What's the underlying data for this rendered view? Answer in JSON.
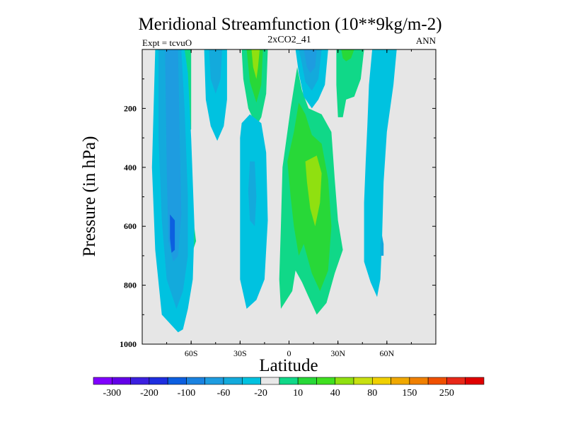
{
  "chart_data": {
    "type": "contour",
    "title": "Meridional Streamfunction (10**9kg/m-2)",
    "subtitle": "2xCO2_41",
    "left_label": "Expt = tcvuO",
    "right_label": "ANN",
    "xlabel": "Latitude",
    "ylabel": "Pressure (in hPa)",
    "xlim": [
      -90,
      90
    ],
    "ylim": [
      1000,
      0
    ],
    "x_ticks": [
      {
        "value": -60,
        "label": "60S"
      },
      {
        "value": -30,
        "label": "30S"
      },
      {
        "value": 0,
        "label": "0"
      },
      {
        "value": 30,
        "label": "30N"
      },
      {
        "value": 60,
        "label": "60N"
      }
    ],
    "y_ticks": [
      {
        "value": 200,
        "label": "200"
      },
      {
        "value": 400,
        "label": "400"
      },
      {
        "value": 600,
        "label": "600"
      },
      {
        "value": 800,
        "label": "800"
      },
      {
        "value": 1000,
        "label": "1000"
      }
    ],
    "background_color": "#e6e6e6",
    "colorbar": {
      "colors": [
        "#8000ff",
        "#6300e8",
        "#3b1fe0",
        "#1e2ee0",
        "#0c5fe0",
        "#1a82e0",
        "#1e9ce0",
        "#13aadc",
        "#00c2e0",
        "#e8e8e8",
        "#10d888",
        "#28d838",
        "#40e020",
        "#90e010",
        "#c8e010",
        "#f0d000",
        "#f0a800",
        "#f08000",
        "#f05000",
        "#e82818",
        "#e00000"
      ],
      "labels": [
        "-300",
        "-200",
        "-100",
        "-60",
        "-20",
        "10",
        "40",
        "80",
        "150",
        "250"
      ]
    },
    "regions": [
      {
        "level": 2,
        "color": "#00c2e0",
        "points": [
          [
            -82,
            0
          ],
          [
            -64,
            0
          ],
          [
            -62,
            80
          ],
          [
            -60,
            300
          ],
          [
            -58,
            600
          ],
          [
            -59,
            780
          ],
          [
            -62,
            880
          ],
          [
            -65,
            950
          ],
          [
            -68,
            960
          ],
          [
            -78,
            900
          ],
          [
            -82,
            680
          ],
          [
            -84,
            400
          ]
        ]
      },
      {
        "level": 3,
        "color": "#13aadc",
        "points": [
          [
            -80,
            0
          ],
          [
            -66,
            0
          ],
          [
            -64,
            200
          ],
          [
            -62,
            500
          ],
          [
            -62,
            700
          ],
          [
            -65,
            820
          ],
          [
            -69,
            880
          ],
          [
            -75,
            780
          ],
          [
            -78,
            580
          ],
          [
            -80,
            300
          ]
        ]
      },
      {
        "level": 4,
        "color": "#1e9ce0",
        "points": [
          [
            -76,
            0
          ],
          [
            -68,
            0
          ],
          [
            -67,
            300
          ],
          [
            -66,
            560
          ],
          [
            -68,
            700
          ],
          [
            -71,
            720
          ],
          [
            -74,
            650
          ],
          [
            -75,
            400
          ]
        ]
      },
      {
        "level": 5,
        "color": "#0c5fe0",
        "points": [
          [
            -73,
            560
          ],
          [
            -70,
            580
          ],
          [
            -70,
            680
          ],
          [
            -72,
            690
          ],
          [
            -73,
            640
          ]
        ]
      },
      {
        "level": 1,
        "color": "#10d888",
        "points": [
          [
            -66,
            0
          ],
          [
            -60,
            0
          ],
          [
            -60,
            270
          ],
          [
            -63,
            300
          ],
          [
            -65,
            200
          ]
        ]
      },
      {
        "level": 1,
        "color": "#10d888",
        "points": [
          [
            -60,
            520
          ],
          [
            -57,
            650
          ],
          [
            -60,
            700
          ],
          [
            -62,
            680
          ]
        ]
      },
      {
        "level": 2,
        "color": "#00c2e0",
        "points": [
          [
            -52,
            0
          ],
          [
            -38,
            0
          ],
          [
            -38,
            170
          ],
          [
            -40,
            260
          ],
          [
            -44,
            310
          ],
          [
            -48,
            260
          ],
          [
            -51,
            170
          ]
        ]
      },
      {
        "level": 3,
        "color": "#13aadc",
        "points": [
          [
            -49,
            0
          ],
          [
            -41,
            0
          ],
          [
            -42,
            100
          ],
          [
            -45,
            150
          ],
          [
            -48,
            100
          ]
        ]
      },
      {
        "level": 1,
        "color": "#10d888",
        "points": [
          [
            -29,
            0
          ],
          [
            -13,
            0
          ],
          [
            -14,
            150
          ],
          [
            -17,
            230
          ],
          [
            -20,
            260
          ],
          [
            -25,
            200
          ],
          [
            -28,
            100
          ]
        ]
      },
      {
        "level": 2,
        "color": "#28d838",
        "points": [
          [
            -26,
            0
          ],
          [
            -16,
            0
          ],
          [
            -17,
            120
          ],
          [
            -20,
            180
          ],
          [
            -24,
            110
          ]
        ]
      },
      {
        "level": 3,
        "color": "#90e010",
        "points": [
          [
            -23,
            0
          ],
          [
            -18,
            0
          ],
          [
            -19,
            60
          ],
          [
            -20,
            100
          ],
          [
            -22,
            60
          ]
        ]
      },
      {
        "level": 2,
        "color": "#00c2e0",
        "points": [
          [
            -29,
            250
          ],
          [
            -24,
            220
          ],
          [
            -17,
            250
          ],
          [
            -14,
            350
          ],
          [
            -13,
            580
          ],
          [
            -15,
            780
          ],
          [
            -20,
            850
          ],
          [
            -26,
            880
          ],
          [
            -30,
            780
          ],
          [
            -30,
            500
          ],
          [
            -30,
            300
          ]
        ]
      },
      {
        "level": 3,
        "color": "#13aadc",
        "points": [
          [
            -24,
            380
          ],
          [
            -21,
            380
          ],
          [
            -20,
            500
          ],
          [
            -21,
            600
          ],
          [
            -24,
            580
          ],
          [
            -25,
            480
          ]
        ]
      },
      {
        "level": 2,
        "color": "#00c2e0",
        "points": [
          [
            4,
            0
          ],
          [
            24,
            0
          ],
          [
            22,
            120
          ],
          [
            18,
            170
          ],
          [
            14,
            200
          ],
          [
            9,
            160
          ],
          [
            6,
            80
          ]
        ]
      },
      {
        "level": 3,
        "color": "#13aadc",
        "points": [
          [
            6,
            0
          ],
          [
            20,
            0
          ],
          [
            18,
            100
          ],
          [
            14,
            140
          ],
          [
            10,
            110
          ],
          [
            8,
            50
          ]
        ]
      },
      {
        "level": 4,
        "color": "#1e9ce0",
        "points": [
          [
            9,
            0
          ],
          [
            17,
            0
          ],
          [
            16,
            60
          ],
          [
            13,
            80
          ],
          [
            11,
            60
          ]
        ]
      },
      {
        "level": 1,
        "color": "#10d888",
        "points": [
          [
            -4,
            400
          ],
          [
            1,
            200
          ],
          [
            5,
            60
          ],
          [
            8,
            140
          ],
          [
            12,
            200
          ],
          [
            20,
            220
          ],
          [
            26,
            280
          ],
          [
            28,
            440
          ],
          [
            30,
            580
          ],
          [
            33,
            680
          ],
          [
            28,
            760
          ],
          [
            23,
            860
          ],
          [
            17,
            900
          ],
          [
            12,
            840
          ],
          [
            8,
            790
          ],
          [
            4,
            750
          ],
          [
            2,
            820
          ],
          [
            -5,
            880
          ],
          [
            -6,
            780
          ],
          [
            -5,
            600
          ]
        ]
      },
      {
        "level": 2,
        "color": "#28d838",
        "points": [
          [
            -1,
            380
          ],
          [
            3,
            280
          ],
          [
            6,
            180
          ],
          [
            10,
            220
          ],
          [
            14,
            290
          ],
          [
            20,
            320
          ],
          [
            24,
            440
          ],
          [
            26,
            600
          ],
          [
            24,
            750
          ],
          [
            19,
            820
          ],
          [
            14,
            760
          ],
          [
            9,
            660
          ],
          [
            6,
            700
          ],
          [
            3,
            600
          ],
          [
            1,
            500
          ]
        ]
      },
      {
        "level": 3,
        "color": "#90e010",
        "points": [
          [
            10,
            380
          ],
          [
            17,
            360
          ],
          [
            20,
            420
          ],
          [
            19,
            520
          ],
          [
            16,
            600
          ],
          [
            13,
            540
          ],
          [
            11,
            450
          ]
        ]
      },
      {
        "level": 1,
        "color": "#10d888",
        "points": [
          [
            29,
            0
          ],
          [
            46,
            0
          ],
          [
            44,
            100
          ],
          [
            40,
            160
          ],
          [
            35,
            170
          ],
          [
            33,
            230
          ],
          [
            30,
            230
          ],
          [
            29,
            120
          ]
        ]
      },
      {
        "level": 2,
        "color": "#28d838",
        "points": [
          [
            32,
            0
          ],
          [
            40,
            0
          ],
          [
            38,
            30
          ],
          [
            35,
            40
          ],
          [
            33,
            30
          ]
        ]
      },
      {
        "level": 2,
        "color": "#00c2e0",
        "points": [
          [
            51,
            0
          ],
          [
            66,
            0
          ],
          [
            64,
            120
          ],
          [
            60,
            280
          ],
          [
            58,
            450
          ],
          [
            57,
            650
          ],
          [
            56,
            780
          ],
          [
            54,
            840
          ],
          [
            50,
            790
          ],
          [
            46,
            720
          ],
          [
            46,
            520
          ],
          [
            47,
            380
          ],
          [
            48,
            260
          ],
          [
            49,
            120
          ]
        ]
      },
      {
        "level": 3,
        "color": "#13aadc",
        "points": [
          [
            57,
            630
          ],
          [
            58,
            660
          ],
          [
            58,
            700
          ],
          [
            56,
            700
          ],
          [
            56,
            660
          ]
        ]
      }
    ]
  }
}
